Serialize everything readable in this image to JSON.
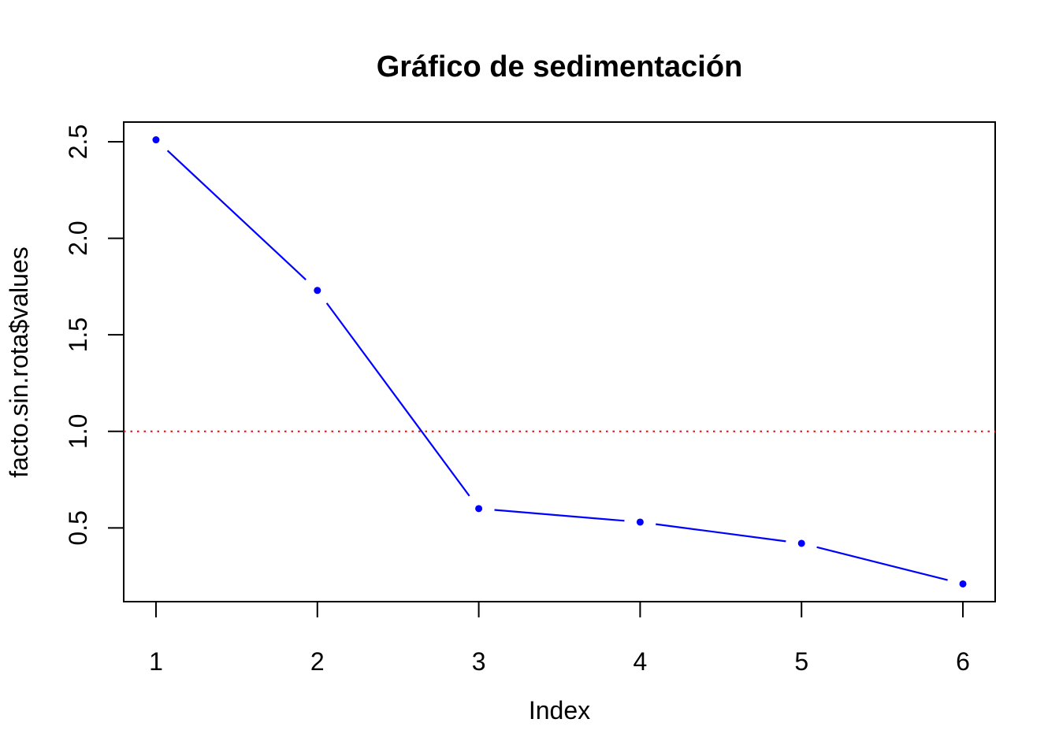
{
  "chart_data": {
    "type": "line",
    "title": "Gráfico de sedimentación",
    "xlabel": "Index",
    "ylabel": "facto.sin.rota$values",
    "x": [
      1,
      2,
      3,
      4,
      5,
      6
    ],
    "values": [
      2.51,
      1.73,
      0.6,
      0.53,
      0.42,
      0.21
    ],
    "x_ticks": [
      "1",
      "2",
      "3",
      "4",
      "5",
      "6"
    ],
    "y_ticks": [
      "0.5",
      "1.0",
      "1.5",
      "2.0",
      "2.5"
    ],
    "y_tick_values": [
      0.5,
      1.0,
      1.5,
      2.0,
      2.5
    ],
    "xlim": [
      0.8,
      6.2
    ],
    "ylim": [
      0.118,
      2.602
    ],
    "grid": false,
    "legend": "none",
    "marker": "filled-circle",
    "line_style": "segments-with-gaps (R type='b')",
    "series_color": "#0000FF",
    "reference_line": {
      "y": 1.0,
      "style": "dotted",
      "color": "#FF0000"
    },
    "axis_color": "#000000",
    "background_color": "#FFFFFF"
  }
}
